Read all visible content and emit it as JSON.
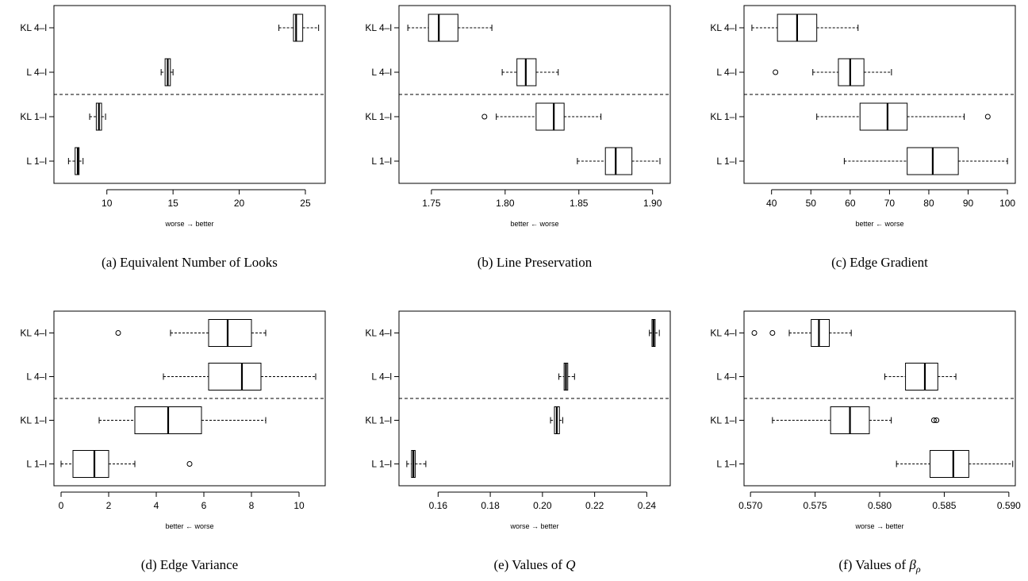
{
  "chart_data": [
    {
      "type": "boxplot",
      "panel": "a",
      "caption": "(a)  Equivalent Number of Looks",
      "caption_parts": {
        "prefix": "(a)  Equivalent Number of Looks",
        "math": "",
        "sub": ""
      },
      "xlabel": "worse → better",
      "xlim": [
        6.0,
        26.5
      ],
      "xticks": [
        10,
        15,
        20,
        25
      ],
      "tick_labels": [
        "10",
        "15",
        "20",
        "25"
      ],
      "categories": [
        "KL 4–l",
        "L 4–l",
        "KL 1–l",
        "L 1–l"
      ],
      "separator_after": 1,
      "boxes": [
        {
          "whisker_low": 23.0,
          "q1": 24.1,
          "median": 24.3,
          "q3": 24.8,
          "whisker_high": 26.0,
          "outliers": []
        },
        {
          "whisker_low": 14.1,
          "q1": 14.4,
          "median": 14.6,
          "q3": 14.8,
          "whisker_high": 15.0,
          "outliers": []
        },
        {
          "whisker_low": 8.7,
          "q1": 9.2,
          "median": 9.4,
          "q3": 9.6,
          "whisker_high": 9.9,
          "outliers": []
        },
        {
          "whisker_low": 7.1,
          "q1": 7.6,
          "median": 7.8,
          "q3": 7.9,
          "whisker_high": 8.2,
          "outliers": []
        }
      ]
    },
    {
      "type": "boxplot",
      "panel": "b",
      "caption": "(b)  Line Preservation",
      "caption_parts": {
        "prefix": "(b)  Line Preservation",
        "math": "",
        "sub": ""
      },
      "xlabel": "better ← worse",
      "xlim": [
        1.728,
        1.912
      ],
      "xticks": [
        1.75,
        1.8,
        1.85,
        1.9
      ],
      "tick_labels": [
        "1.75",
        "1.80",
        "1.85",
        "1.90"
      ],
      "categories": [
        "KL 4–l",
        "L 4–l",
        "KL 1–l",
        "L 1–l"
      ],
      "separator_after": 1,
      "boxes": [
        {
          "whisker_low": 1.734,
          "q1": 1.748,
          "median": 1.755,
          "q3": 1.768,
          "whisker_high": 1.791,
          "outliers": []
        },
        {
          "whisker_low": 1.798,
          "q1": 1.808,
          "median": 1.814,
          "q3": 1.821,
          "whisker_high": 1.836,
          "outliers": []
        },
        {
          "whisker_low": 1.794,
          "q1": 1.821,
          "median": 1.833,
          "q3": 1.84,
          "whisker_high": 1.865,
          "outliers": [
            1.786
          ]
        },
        {
          "whisker_low": 1.849,
          "q1": 1.868,
          "median": 1.875,
          "q3": 1.886,
          "whisker_high": 1.905,
          "outliers": []
        }
      ]
    },
    {
      "type": "boxplot",
      "panel": "c",
      "caption": "(c)  Edge Gradient",
      "caption_parts": {
        "prefix": "(c)  Edge Gradient",
        "math": "",
        "sub": ""
      },
      "xlabel": "better ← worse",
      "xlim": [
        33,
        102
      ],
      "xticks": [
        40,
        50,
        60,
        70,
        80,
        90,
        100
      ],
      "tick_labels": [
        "40",
        "50",
        "60",
        "70",
        "80",
        "90",
        "100"
      ],
      "categories": [
        "KL 4–l",
        "L 4–l",
        "KL 1–l",
        "L 1–l"
      ],
      "separator_after": 1,
      "boxes": [
        {
          "whisker_low": 35.0,
          "q1": 41.5,
          "median": 46.5,
          "q3": 51.5,
          "whisker_high": 62.0,
          "outliers": []
        },
        {
          "whisker_low": 50.5,
          "q1": 57.0,
          "median": 60.0,
          "q3": 63.5,
          "whisker_high": 70.5,
          "outliers": [
            41.0
          ]
        },
        {
          "whisker_low": 51.5,
          "q1": 62.5,
          "median": 69.5,
          "q3": 74.5,
          "whisker_high": 89.0,
          "outliers": [
            95.0
          ]
        },
        {
          "whisker_low": 58.5,
          "q1": 74.5,
          "median": 81.0,
          "q3": 87.5,
          "whisker_high": 100.0,
          "outliers": []
        }
      ]
    },
    {
      "type": "boxplot",
      "panel": "d",
      "caption": "(d)  Edge Variance",
      "caption_parts": {
        "prefix": "(d)  Edge Variance",
        "math": "",
        "sub": ""
      },
      "xlabel": "better ← worse",
      "xlim": [
        -0.3,
        11.1
      ],
      "xticks": [
        0,
        2,
        4,
        6,
        8,
        10
      ],
      "tick_labels": [
        "0",
        "2",
        "4",
        "6",
        "8",
        "10"
      ],
      "categories": [
        "KL 4–l",
        "L 4–l",
        "KL 1–l",
        "L 1–l"
      ],
      "separator_after": 1,
      "boxes": [
        {
          "whisker_low": 4.6,
          "q1": 6.2,
          "median": 7.0,
          "q3": 8.0,
          "whisker_high": 8.6,
          "outliers": [
            2.4
          ]
        },
        {
          "whisker_low": 4.3,
          "q1": 6.2,
          "median": 7.6,
          "q3": 8.4,
          "whisker_high": 10.7,
          "outliers": []
        },
        {
          "whisker_low": 1.6,
          "q1": 3.1,
          "median": 4.5,
          "q3": 5.9,
          "whisker_high": 8.6,
          "outliers": []
        },
        {
          "whisker_low": 0.0,
          "q1": 0.5,
          "median": 1.4,
          "q3": 2.0,
          "whisker_high": 3.1,
          "outliers": [
            5.4
          ]
        }
      ]
    },
    {
      "type": "boxplot",
      "panel": "e",
      "caption": "(e)  Values of Q",
      "caption_parts": {
        "prefix": "(e)  Values of ",
        "math": "Q",
        "sub": ""
      },
      "xlabel": "worse → better",
      "xlim": [
        0.145,
        0.249
      ],
      "xticks": [
        0.16,
        0.18,
        0.2,
        0.22,
        0.24
      ],
      "tick_labels": [
        "0.16",
        "0.18",
        "0.20",
        "0.22",
        "0.24"
      ],
      "categories": [
        "KL 4–l",
        "L 4–l",
        "KL 1–l",
        "L 1–l"
      ],
      "separator_after": 1,
      "boxes": [
        {
          "whisker_low": 0.241,
          "q1": 0.242,
          "median": 0.2426,
          "q3": 0.2432,
          "whisker_high": 0.2448,
          "outliers": []
        },
        {
          "whisker_low": 0.2063,
          "q1": 0.2083,
          "median": 0.209,
          "q3": 0.2097,
          "whisker_high": 0.2123,
          "outliers": []
        },
        {
          "whisker_low": 0.2031,
          "q1": 0.2046,
          "median": 0.2055,
          "q3": 0.2065,
          "whisker_high": 0.2078,
          "outliers": []
        },
        {
          "whisker_low": 0.148,
          "q1": 0.1498,
          "median": 0.1505,
          "q3": 0.1512,
          "whisker_high": 0.1553,
          "outliers": []
        }
      ]
    },
    {
      "type": "boxplot",
      "panel": "f",
      "caption": "(f)  Values of βρ",
      "caption_parts": {
        "prefix": "(f)  Values of ",
        "math": "β",
        "sub": "ρ"
      },
      "xlabel": "worse → better",
      "xlim": [
        0.5695,
        0.5905
      ],
      "xticks": [
        0.57,
        0.575,
        0.58,
        0.585,
        0.59
      ],
      "tick_labels": [
        "0.570",
        "0.575",
        "0.580",
        "0.585",
        "0.590"
      ],
      "categories": [
        "KL 4–l",
        "L 4–l",
        "KL 1–l",
        "L 1–l"
      ],
      "separator_after": 1,
      "boxes": [
        {
          "whisker_low": 0.573,
          "q1": 0.5747,
          "median": 0.5753,
          "q3": 0.5761,
          "whisker_high": 0.5778,
          "outliers": [
            0.5703,
            0.5717
          ]
        },
        {
          "whisker_low": 0.5804,
          "q1": 0.582,
          "median": 0.5835,
          "q3": 0.5845,
          "whisker_high": 0.5859,
          "outliers": []
        },
        {
          "whisker_low": 0.5717,
          "q1": 0.5762,
          "median": 0.5777,
          "q3": 0.5792,
          "whisker_high": 0.5809,
          "outliers": [
            0.5842,
            0.5844
          ]
        },
        {
          "whisker_low": 0.5813,
          "q1": 0.5839,
          "median": 0.5857,
          "q3": 0.5869,
          "whisker_high": 0.5903,
          "outliers": []
        }
      ]
    }
  ]
}
